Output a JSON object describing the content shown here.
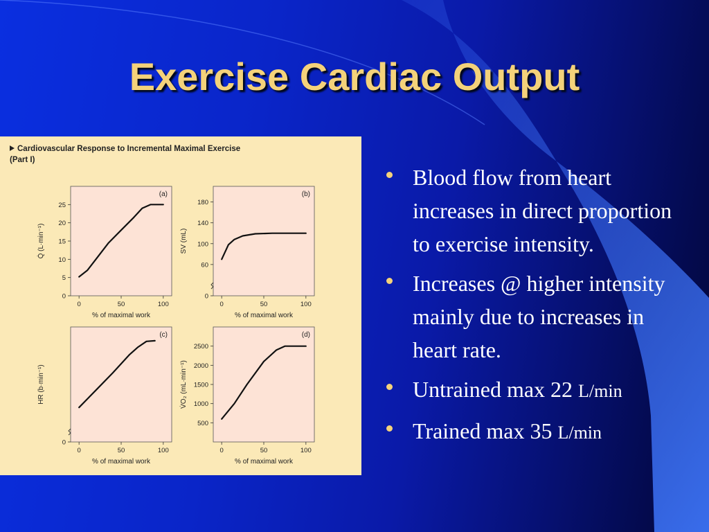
{
  "slide": {
    "title": "Exercise Cardiac Output",
    "bullets": [
      {
        "text": "Blood flow from heart increases in direct proportion to exercise intensity."
      },
      {
        "text": "Increases @ higher intensity mainly due to increases in heart rate."
      },
      {
        "text": "Untrained max 22 ",
        "unit": "L/min"
      },
      {
        "text": "Trained max 35 ",
        "unit": "L/min"
      }
    ],
    "colors": {
      "title": "#f4d27a",
      "bullet_dot": "#f4d27a",
      "panel": "#fbe9b7",
      "plot_bg": "#fde3d6"
    }
  },
  "figure": {
    "caption_line1": "Cardiovascular Response to Incremental Maximal Exercise",
    "caption_line2": "(Part I)"
  },
  "chart_data": [
    {
      "type": "line",
      "panel_label": "(a)",
      "xlabel": "% of maximal work",
      "ylabel": "Q̇ (L·min⁻¹)",
      "xlim": [
        -10,
        110
      ],
      "ylim": [
        0,
        30
      ],
      "xticks": [
        0,
        50,
        100
      ],
      "yticks": [
        0,
        5,
        10,
        15,
        20,
        25
      ],
      "y_axis_break": false,
      "points": [
        [
          0,
          5.2
        ],
        [
          10,
          7
        ],
        [
          20,
          10
        ],
        [
          35,
          14.5
        ],
        [
          50,
          18
        ],
        [
          65,
          21.5
        ],
        [
          75,
          24
        ],
        [
          85,
          25
        ],
        [
          100,
          25
        ]
      ]
    },
    {
      "type": "line",
      "panel_label": "(b)",
      "xlabel": "% of maximal work",
      "ylabel": "SV (mL)",
      "xlim": [
        -10,
        110
      ],
      "ylim": [
        0,
        210
      ],
      "xticks": [
        0,
        50,
        100
      ],
      "yticks": [
        0,
        60,
        100,
        140,
        180
      ],
      "y_axis_break": true,
      "points": [
        [
          0,
          70
        ],
        [
          8,
          98
        ],
        [
          15,
          108
        ],
        [
          25,
          115
        ],
        [
          40,
          119
        ],
        [
          60,
          120
        ],
        [
          80,
          120
        ],
        [
          100,
          120
        ]
      ]
    },
    {
      "type": "line",
      "panel_label": "(c)",
      "xlabel": "% of maximal work",
      "ylabel": "HR (b·min⁻¹)",
      "xlim": [
        -10,
        110
      ],
      "ylim": [
        0,
        200
      ],
      "xticks": [
        0,
        50,
        100
      ],
      "yticks": [
        0
      ],
      "y_axis_break": true,
      "points": [
        [
          0,
          60
        ],
        [
          20,
          90
        ],
        [
          40,
          120
        ],
        [
          60,
          152
        ],
        [
          70,
          165
        ],
        [
          80,
          175
        ],
        [
          90,
          176
        ]
      ]
    },
    {
      "type": "line",
      "panel_label": "(d)",
      "xlabel": "% of maximal work",
      "ylabel": "V̇O₂ (mL·min⁻¹)",
      "xlim": [
        -10,
        110
      ],
      "ylim": [
        0,
        3000
      ],
      "xticks": [
        0,
        50,
        100
      ],
      "yticks": [
        500,
        1000,
        1500,
        2000,
        2500
      ],
      "y_axis_break": false,
      "points": [
        [
          0,
          600
        ],
        [
          15,
          1000
        ],
        [
          30,
          1500
        ],
        [
          50,
          2100
        ],
        [
          65,
          2400
        ],
        [
          75,
          2500
        ],
        [
          100,
          2500
        ]
      ]
    }
  ]
}
